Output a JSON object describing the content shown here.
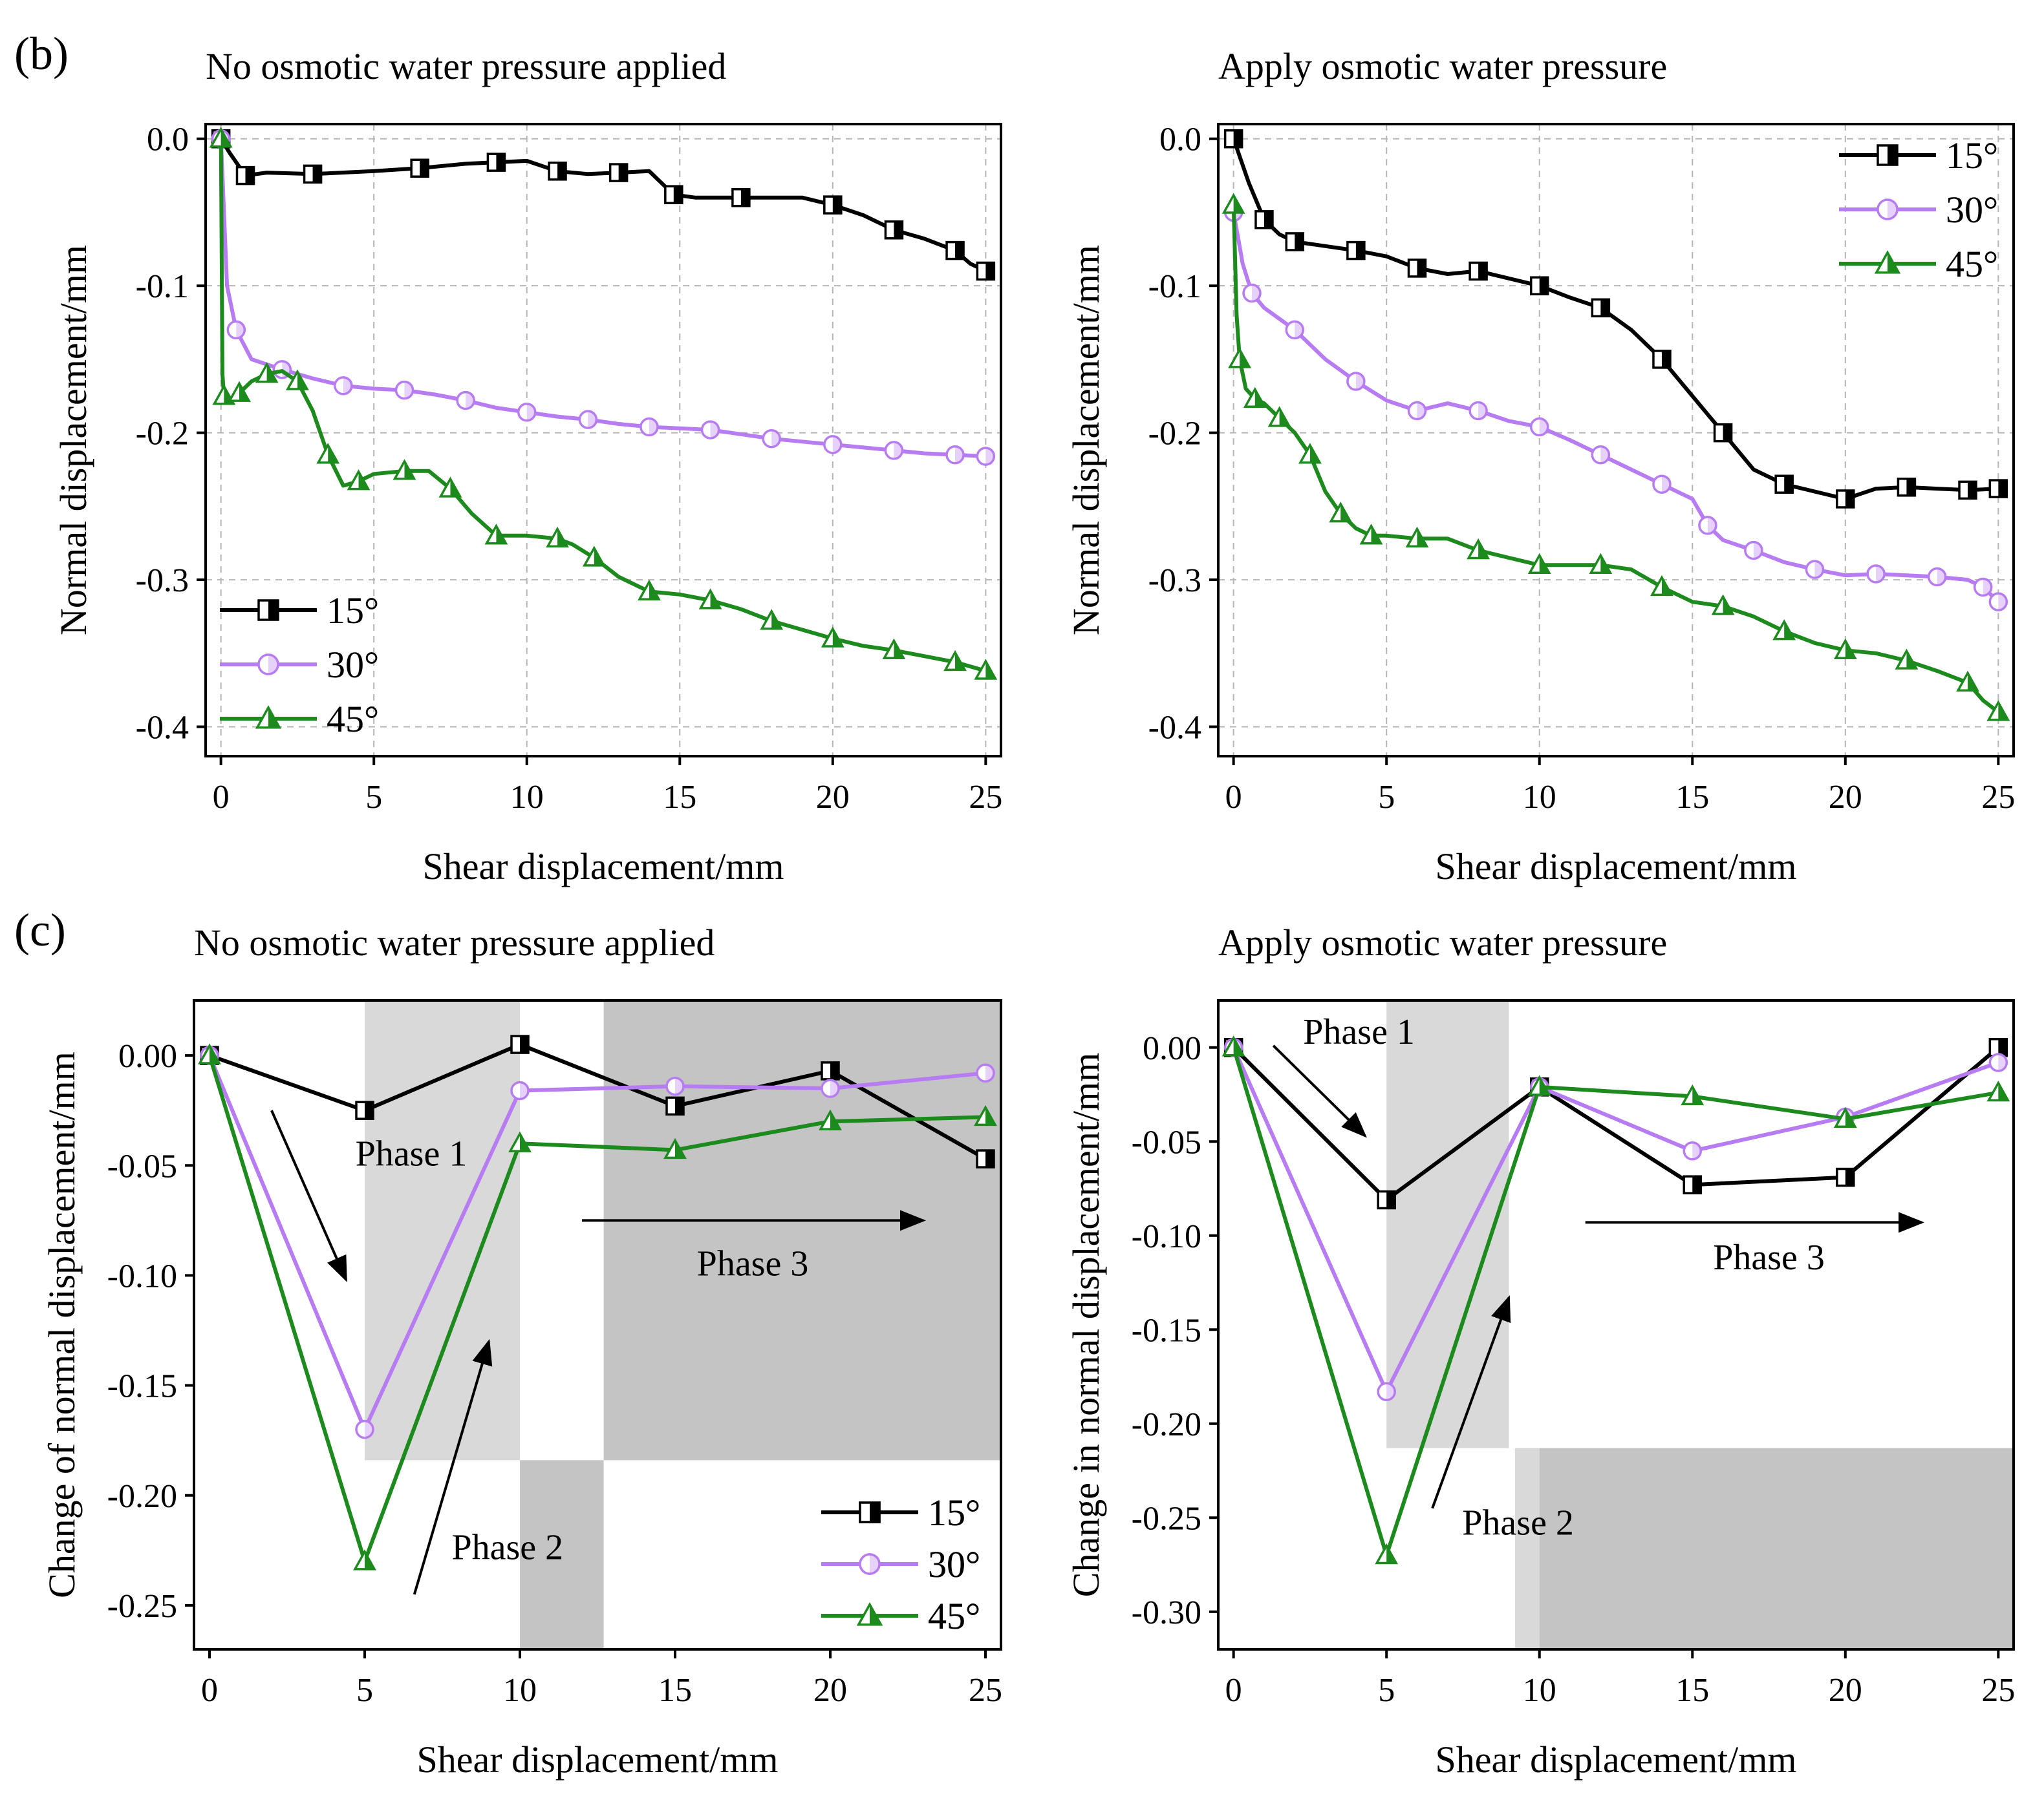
{
  "colors": {
    "s15": "#000000",
    "s30": "#b77cf2",
    "s45": "#1c8a1c",
    "shade_light": "#d9d9d9",
    "shade_dark": "#c4c4c4",
    "grid": "#b5b5b5"
  },
  "legend_labels": [
    "15°",
    "30°",
    "45°"
  ],
  "chart_data": [
    {
      "id": "b1",
      "panel_label": "(b)",
      "type": "line",
      "title": "No osmotic water pressure applied",
      "xlabel": "Shear displacement/mm",
      "ylabel": "Normal displacement/mm",
      "xlim": [
        -0.5,
        25.5
      ],
      "ylim": [
        -0.42,
        0.01
      ],
      "xticks": [
        0,
        5,
        10,
        15,
        20,
        25
      ],
      "xtick_labels": [
        "0",
        "5",
        "10",
        "15",
        "20",
        "25"
      ],
      "yticks": [
        0,
        -0.1,
        -0.2,
        -0.3,
        -0.4
      ],
      "ytick_labels": [
        "0.0",
        "-0.1",
        "-0.2",
        "-0.3",
        "-0.4"
      ],
      "grid": true,
      "legend_position": "bottom-left",
      "series": [
        {
          "name": "15°",
          "marker": "square",
          "x": [
            0,
            0.3,
            0.8,
            1.5,
            3,
            5,
            6.5,
            8,
            9,
            10,
            11,
            12,
            13,
            14,
            14.8,
            15.5,
            17,
            19,
            20,
            21,
            22,
            23,
            24,
            24.5,
            25
          ],
          "y": [
            0,
            -0.01,
            -0.025,
            -0.023,
            -0.024,
            -0.022,
            -0.02,
            -0.017,
            -0.016,
            -0.015,
            -0.022,
            -0.024,
            -0.023,
            -0.022,
            -0.038,
            -0.04,
            -0.04,
            -0.04,
            -0.045,
            -0.052,
            -0.062,
            -0.068,
            -0.076,
            -0.085,
            -0.09
          ]
        },
        {
          "name": "30°",
          "marker": "circle",
          "x": [
            0,
            0.2,
            0.5,
            1,
            2,
            3,
            4,
            5,
            6,
            7,
            8,
            9,
            10,
            11,
            12,
            13,
            14,
            15,
            16,
            17,
            18,
            19,
            20,
            21,
            22,
            23,
            24,
            25
          ],
          "y": [
            0,
            -0.1,
            -0.13,
            -0.15,
            -0.157,
            -0.163,
            -0.168,
            -0.17,
            -0.171,
            -0.174,
            -0.178,
            -0.183,
            -0.186,
            -0.189,
            -0.191,
            -0.194,
            -0.196,
            -0.197,
            -0.198,
            -0.201,
            -0.204,
            -0.206,
            -0.208,
            -0.21,
            -0.212,
            -0.214,
            -0.215,
            -0.216
          ]
        },
        {
          "name": "45°",
          "marker": "triangle",
          "x": [
            0,
            0.05,
            0.1,
            0.3,
            0.6,
            1,
            1.5,
            2,
            2.5,
            3,
            3.5,
            4,
            4.5,
            5,
            6,
            6.8,
            7.5,
            8.2,
            9,
            10,
            11,
            11.5,
            12.2,
            13,
            14,
            15,
            16,
            17,
            18,
            19,
            20,
            21,
            22,
            23,
            24,
            25
          ],
          "y": [
            0,
            -0.16,
            -0.175,
            -0.178,
            -0.173,
            -0.165,
            -0.16,
            -0.158,
            -0.165,
            -0.185,
            -0.215,
            -0.236,
            -0.233,
            -0.228,
            -0.226,
            -0.226,
            -0.238,
            -0.255,
            -0.27,
            -0.27,
            -0.272,
            -0.276,
            -0.285,
            -0.298,
            -0.308,
            -0.31,
            -0.314,
            -0.32,
            -0.328,
            -0.334,
            -0.34,
            -0.345,
            -0.348,
            -0.352,
            -0.356,
            -0.362
          ]
        }
      ]
    },
    {
      "id": "b2",
      "panel_label": "",
      "type": "line",
      "title": "Apply osmotic water pressure",
      "xlabel": "Shear displacement/mm",
      "ylabel": "Normal displacement/mm",
      "xlim": [
        -0.5,
        25.5
      ],
      "ylim": [
        -0.42,
        0.01
      ],
      "xticks": [
        0,
        5,
        10,
        15,
        20,
        25
      ],
      "xtick_labels": [
        "0",
        "5",
        "10",
        "15",
        "20",
        "25"
      ],
      "yticks": [
        0,
        -0.1,
        -0.2,
        -0.3,
        -0.4
      ],
      "ytick_labels": [
        "0.0",
        "-0.1",
        "-0.2",
        "-0.3",
        "-0.4"
      ],
      "grid": true,
      "legend_position": "top-right",
      "series": [
        {
          "name": "15°",
          "marker": "square",
          "x": [
            0,
            0.5,
            1,
            1.5,
            2,
            3,
            4,
            5,
            6,
            7,
            8,
            9,
            10,
            11,
            12,
            13,
            14,
            15,
            16,
            17,
            18,
            19,
            20,
            21,
            22,
            23,
            24,
            25
          ],
          "y": [
            0,
            -0.03,
            -0.055,
            -0.065,
            -0.07,
            -0.073,
            -0.076,
            -0.08,
            -0.088,
            -0.092,
            -0.09,
            -0.095,
            -0.1,
            -0.108,
            -0.115,
            -0.13,
            -0.15,
            -0.175,
            -0.2,
            -0.225,
            -0.235,
            -0.24,
            -0.245,
            -0.238,
            -0.237,
            -0.238,
            -0.239,
            -0.238
          ]
        },
        {
          "name": "30°",
          "marker": "circle",
          "x": [
            0,
            0.3,
            0.6,
            1,
            2,
            3,
            4,
            5,
            6,
            7,
            8,
            9,
            10,
            11,
            12,
            13,
            14,
            15,
            15.5,
            16,
            17,
            18,
            19,
            20,
            21,
            22,
            23,
            24,
            24.5,
            25
          ],
          "y": [
            -0.05,
            -0.085,
            -0.105,
            -0.115,
            -0.13,
            -0.15,
            -0.165,
            -0.178,
            -0.185,
            -0.18,
            -0.185,
            -0.192,
            -0.196,
            -0.205,
            -0.215,
            -0.225,
            -0.235,
            -0.245,
            -0.263,
            -0.273,
            -0.28,
            -0.288,
            -0.293,
            -0.297,
            -0.296,
            -0.297,
            -0.298,
            -0.3,
            -0.305,
            -0.315
          ]
        },
        {
          "name": "45°",
          "marker": "triangle",
          "x": [
            0,
            0.1,
            0.2,
            0.4,
            0.7,
            1,
            1.5,
            2,
            2.5,
            3,
            3.5,
            4,
            4.5,
            5,
            6,
            7,
            8,
            9,
            10,
            11,
            12,
            13,
            14,
            15,
            16,
            17,
            18,
            19,
            20,
            21,
            22,
            23,
            24,
            24.5,
            25
          ],
          "y": [
            -0.045,
            -0.12,
            -0.15,
            -0.17,
            -0.177,
            -0.18,
            -0.19,
            -0.2,
            -0.215,
            -0.24,
            -0.255,
            -0.265,
            -0.27,
            -0.27,
            -0.272,
            -0.272,
            -0.28,
            -0.285,
            -0.29,
            -0.29,
            -0.29,
            -0.293,
            -0.305,
            -0.315,
            -0.318,
            -0.325,
            -0.335,
            -0.343,
            -0.348,
            -0.35,
            -0.355,
            -0.362,
            -0.37,
            -0.382,
            -0.39
          ]
        }
      ]
    },
    {
      "id": "c1",
      "panel_label": "(c)",
      "type": "line",
      "title": "No osmotic water pressure applied",
      "xlabel": "Shear displacement/mm",
      "ylabel": "Change of normal displacement/mm",
      "xlim": [
        -0.5,
        25.5
      ],
      "ylim": [
        -0.27,
        0.025
      ],
      "xticks": [
        0,
        5,
        10,
        15,
        20,
        25
      ],
      "xtick_labels": [
        "0",
        "5",
        "10",
        "15",
        "20",
        "25"
      ],
      "yticks": [
        0,
        -0.05,
        -0.1,
        -0.15,
        -0.2,
        -0.25
      ],
      "ytick_labels": [
        "0.00",
        "-0.05",
        "-0.10",
        "-0.15",
        "-0.20",
        "-0.25"
      ],
      "grid": false,
      "legend_position": "bottom-right",
      "phase_regions": [
        {
          "x0": 5,
          "x1": 10,
          "y0": -0.184,
          "y1": 0.025,
          "tone": "light"
        },
        {
          "x0": 10,
          "x1": 12.7,
          "y0": -0.27,
          "y1": -0.184,
          "tone": "dark"
        },
        {
          "x0": 12.7,
          "x1": 25.5,
          "y0": -0.184,
          "y1": 0.025,
          "tone": "dark"
        }
      ],
      "annotations": [
        {
          "text": "Phase 1",
          "x": 6.5,
          "y": -0.05,
          "arrow_from": [
            2,
            -0.025
          ],
          "arrow_to": [
            4.4,
            -0.102
          ]
        },
        {
          "text": "Phase 2",
          "x": 9.6,
          "y": -0.229,
          "arrow_from": [
            6.6,
            -0.245
          ],
          "arrow_to": [
            9,
            -0.13
          ]
        },
        {
          "text": "Phase 3",
          "x": 17.5,
          "y": -0.1,
          "arrow_from": [
            12,
            -0.075
          ],
          "arrow_to": [
            23,
            -0.075
          ]
        }
      ],
      "series": [
        {
          "name": "15°",
          "marker": "square",
          "x": [
            0,
            5,
            10,
            15,
            20,
            25
          ],
          "y": [
            0,
            -0.025,
            0.005,
            -0.023,
            -0.007,
            -0.047
          ]
        },
        {
          "name": "30°",
          "marker": "circle",
          "x": [
            0,
            5,
            10,
            15,
            20,
            25
          ],
          "y": [
            0,
            -0.17,
            -0.016,
            -0.014,
            -0.015,
            -0.008
          ]
        },
        {
          "name": "45°",
          "marker": "triangle",
          "x": [
            0,
            5,
            10,
            15,
            20,
            25
          ],
          "y": [
            0,
            -0.23,
            -0.04,
            -0.043,
            -0.03,
            -0.028
          ]
        }
      ]
    },
    {
      "id": "c2",
      "panel_label": "",
      "type": "line",
      "title": "Apply osmotic water pressure",
      "xlabel": "Shear displacement/mm",
      "ylabel": "Change in normal displacement/mm",
      "xlim": [
        -0.5,
        25.5
      ],
      "ylim": [
        -0.32,
        0.025
      ],
      "xticks": [
        0,
        5,
        10,
        15,
        20,
        25
      ],
      "xtick_labels": [
        "0",
        "5",
        "10",
        "15",
        "20",
        "25"
      ],
      "yticks": [
        0,
        -0.05,
        -0.1,
        -0.15,
        -0.2,
        -0.25,
        -0.3
      ],
      "ytick_labels": [
        "0.00",
        "-0.05",
        "-0.10",
        "-0.15",
        "-0.20",
        "-0.25",
        "-0.30"
      ],
      "grid": false,
      "legend_position": "bottom-right",
      "phase_regions": [
        {
          "x0": 5,
          "x1": 9,
          "y0": -0.213,
          "y1": 0.025,
          "tone": "light"
        },
        {
          "x0": 9.2,
          "x1": 10,
          "y0": -0.32,
          "y1": -0.213,
          "tone": "light"
        },
        {
          "x0": 10,
          "x1": 25.5,
          "y0": -0.32,
          "y1": -0.213,
          "tone": "dark"
        }
      ],
      "annotations": [
        {
          "text": "Phase 1",
          "x": 4.1,
          "y": 0.002,
          "arrow_from": [
            1.3,
            0.001
          ],
          "arrow_to": [
            4.3,
            -0.047
          ]
        },
        {
          "text": "Phase 2",
          "x": 9.3,
          "y": -0.259,
          "arrow_from": [
            6.5,
            -0.245
          ],
          "arrow_to": [
            9,
            -0.133
          ]
        },
        {
          "text": "Phase 3",
          "x": 17.5,
          "y": -0.118,
          "arrow_from": [
            11.5,
            -0.093
          ],
          "arrow_to": [
            22.5,
            -0.093
          ]
        }
      ],
      "series": [
        {
          "name": "15°",
          "marker": "square",
          "x": [
            0,
            5,
            10,
            15,
            20,
            25
          ],
          "y": [
            0,
            -0.081,
            -0.021,
            -0.073,
            -0.069,
            0
          ]
        },
        {
          "name": "30°",
          "marker": "circle",
          "x": [
            0,
            5,
            10,
            15,
            20,
            25
          ],
          "y": [
            0,
            -0.183,
            -0.021,
            -0.055,
            -0.037,
            -0.008
          ]
        },
        {
          "name": "45°",
          "marker": "triangle",
          "x": [
            0,
            5,
            10,
            15,
            20,
            25
          ],
          "y": [
            0,
            -0.27,
            -0.021,
            -0.026,
            -0.038,
            -0.024
          ]
        }
      ]
    }
  ]
}
